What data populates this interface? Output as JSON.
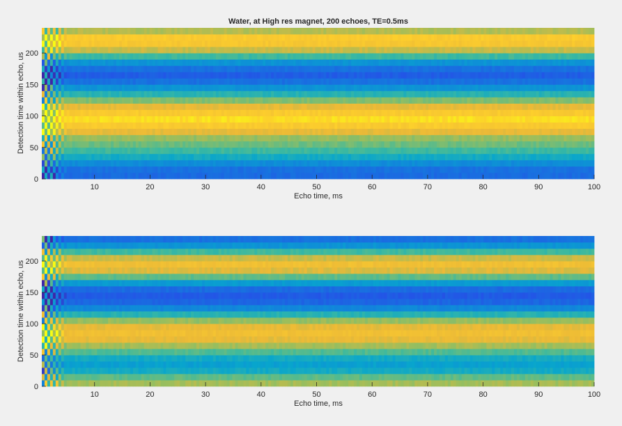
{
  "chart_data": [
    {
      "type": "heatmap",
      "title": "Water, at High res magnet, 200 echoes, TE=0.5ms",
      "xlabel": "Echo time, ms",
      "ylabel": "Detection time within echo, us",
      "xlim": [
        0.5,
        100
      ],
      "ylim": [
        0,
        240
      ],
      "xticks": [
        10,
        20,
        30,
        40,
        50,
        60,
        70,
        80,
        90,
        100
      ],
      "yticks": [
        0,
        50,
        100,
        150,
        200
      ],
      "n_echoes": 200,
      "n_detection_points": 24,
      "detection_time_step": 10,
      "band_levels_bottom_to_top": [
        0.2,
        0.22,
        0.32,
        0.45,
        0.55,
        0.62,
        0.68,
        0.8,
        0.9,
        0.95,
        0.9,
        0.8,
        0.65,
        0.5,
        0.35,
        0.22,
        0.15,
        0.22,
        0.35,
        0.55,
        0.75,
        0.88,
        0.9,
        0.72
      ],
      "colormap": "parula"
    },
    {
      "type": "heatmap",
      "title": "",
      "xlabel": "Echo time, ms",
      "ylabel": "Detection time within echo, us",
      "xlim": [
        0.5,
        100
      ],
      "ylim": [
        0,
        240
      ],
      "xticks": [
        10,
        20,
        30,
        40,
        50,
        60,
        70,
        80,
        90,
        100
      ],
      "yticks": [
        0,
        50,
        100,
        150,
        200
      ],
      "n_echoes": 200,
      "n_detection_points": 24,
      "detection_time_step": 10,
      "band_levels_bottom_to_top": [
        0.7,
        0.6,
        0.45,
        0.4,
        0.45,
        0.58,
        0.7,
        0.8,
        0.84,
        0.8,
        0.68,
        0.5,
        0.3,
        0.18,
        0.14,
        0.2,
        0.38,
        0.6,
        0.78,
        0.84,
        0.75,
        0.55,
        0.35,
        0.22
      ],
      "colormap": "parula"
    }
  ]
}
